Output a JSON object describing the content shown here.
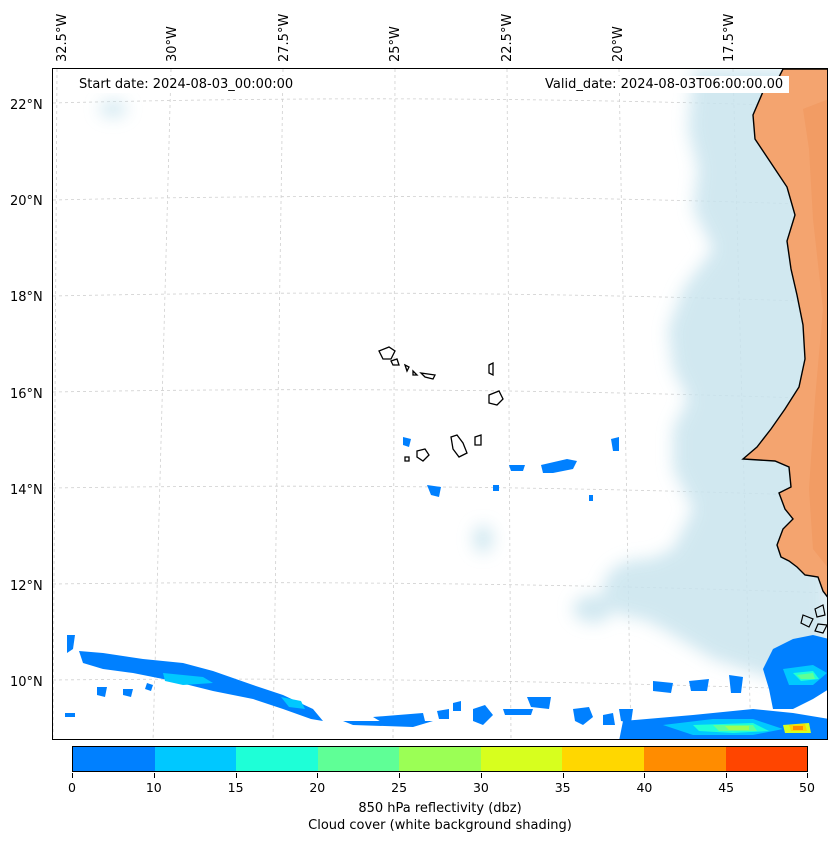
{
  "map": {
    "lon_labels": [
      "32.5°W",
      "30°W",
      "27.5°W",
      "25°W",
      "22.5°W",
      "20°W",
      "17.5°W"
    ],
    "lat_labels": [
      "22°N",
      "20°N",
      "18°N",
      "16°N",
      "14°N",
      "12°N",
      "10°N"
    ],
    "start_label": "Start date: 2024-08-03_00:00:00",
    "valid_label": "Valid_date: 2024-08-03T06:00:00.00",
    "land_color": "#f4a46f",
    "cloud_color": "#c9e4ee",
    "coastline_color": "#000000",
    "gridline_style": "dashed light grey"
  },
  "colorbar": {
    "ticks": [
      "0",
      "10",
      "15",
      "20",
      "25",
      "30",
      "35",
      "40",
      "45",
      "50"
    ],
    "colors": [
      "#0080ff",
      "#00c8ff",
      "#1effd7",
      "#5fff96",
      "#9bff55",
      "#d7ff1e",
      "#ffd700",
      "#ff8c00",
      "#ff4500"
    ],
    "label_line1": "850 hPa reflectivity (dbz)",
    "label_line2": "Cloud cover (white background shading)"
  }
}
